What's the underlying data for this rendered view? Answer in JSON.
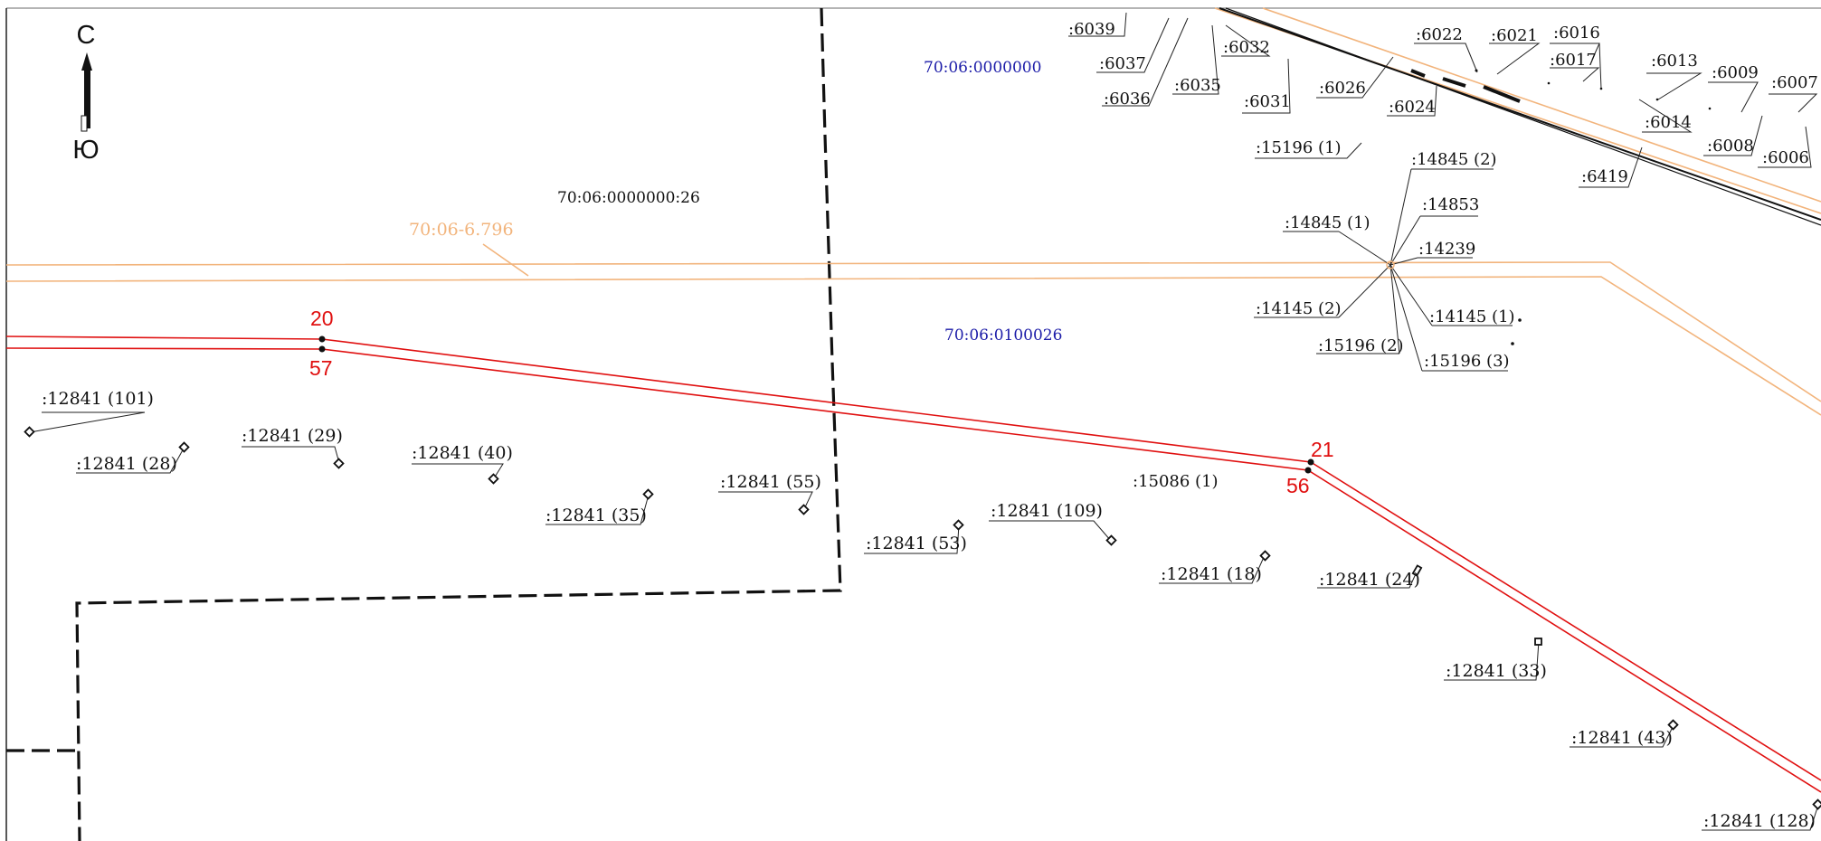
{
  "compass": {
    "north": "С",
    "south": "Ю"
  },
  "quarters": {
    "q1": "70:06:0000000",
    "q2": "70:06:0100026"
  },
  "parcel_main": "70:06:0000000:26",
  "zone_label": "70:06-6.796",
  "points": {
    "p20": "20",
    "p57": "57",
    "p21": "21",
    "p56": "56"
  },
  "top_labels": {
    "l6039": ":6039",
    "l6037": ":6037",
    "l6036": ":6036",
    "l6035": ":6035",
    "l6032": ":6032",
    "l6031": ":6031",
    "l6026": ":6026",
    "l6024": ":6024",
    "l6022": ":6022",
    "l6021": ":6021",
    "l6016": ":6016",
    "l6017": ":6017",
    "l6013": ":6013",
    "l6009": ":6009",
    "l6007": ":6007",
    "l6014": ":6014",
    "l6008": ":6008",
    "l6006": ":6006",
    "l6419": ":6419"
  },
  "mid_labels": {
    "l15196_1": ":15196 (1)",
    "l14845_2": ":14845 (2)",
    "l14853": ":14853",
    "l14845_1": ":14845 (1)",
    "l14239": ":14239",
    "l14145_2": ":14145 (2)",
    "l14145_1": ":14145 (1)",
    "l15196_2": ":15196 (2)",
    "l15196_3": ":15196 (3)",
    "l15086_1": ":15086 (1)"
  },
  "pole_labels": {
    "p101": ":12841 (101)",
    "p28": ":12841 (28)",
    "p29": ":12841 (29)",
    "p40": ":12841 (40)",
    "p35": ":12841 (35)",
    "p55": ":12841 (55)",
    "p53": ":12841 (53)",
    "p109": ":12841 (109)",
    "p18": ":12841 (18)",
    "p24": ":12841 (24)",
    "p33": ":12841 (33)",
    "p43": ":12841 (43)",
    "p128": ":12841 (128)"
  },
  "colors": {
    "red_line": "#e01010",
    "orange_line": "#f2b47c",
    "quarter_blue": "#1c1ca8"
  }
}
